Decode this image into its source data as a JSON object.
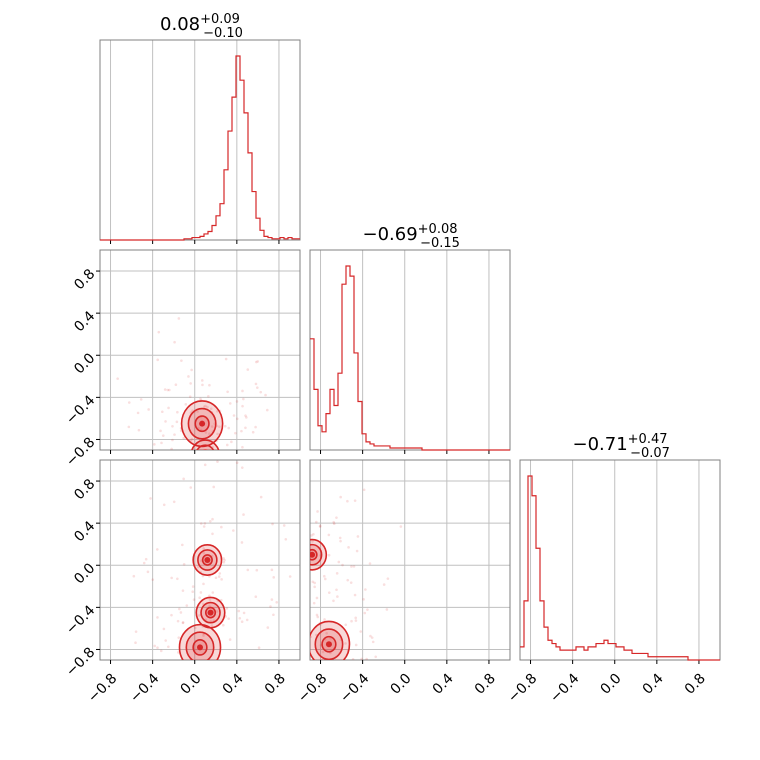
{
  "chart_data": {
    "type": "corner",
    "color": "#d62728",
    "grid": true,
    "axis_range": [
      -0.9,
      1.0
    ],
    "ticks": [
      -0.8,
      -0.4,
      0.0,
      0.4,
      0.8
    ],
    "titles": [
      {
        "value": "0.08",
        "plus": "+0.09",
        "minus": "−0.10"
      },
      {
        "value": "−0.69",
        "plus": "+0.08",
        "minus": "−0.15"
      },
      {
        "value": "−0.71",
        "plus": "+0.47",
        "minus": "−0.07"
      }
    ],
    "x_tick_labels": [
      "−0.8",
      "−0.4",
      "0.0",
      "0.4",
      "0.8"
    ],
    "y_tick_labels": [
      "−0.8",
      "−0.4",
      "0.0",
      "0.4",
      "0.8"
    ],
    "hist_bin_width": 0.038,
    "histograms": [
      {
        "param": 1,
        "bin_start": -0.9,
        "counts": [
          0,
          0,
          0,
          0,
          0,
          0,
          0,
          0,
          0,
          0,
          0,
          0,
          0,
          0,
          0,
          0,
          0,
          0,
          0,
          0,
          0,
          1,
          1,
          2,
          2,
          3,
          5,
          7,
          12,
          20,
          30,
          58,
          90,
          118,
          152,
          132,
          105,
          72,
          40,
          18,
          8,
          3,
          2,
          1,
          1,
          2,
          1,
          2,
          1,
          1,
          2,
          1,
          0
        ]
      },
      {
        "param": 2,
        "bin_start": -0.9,
        "counts": [
          55,
          30,
          12,
          9,
          18,
          30,
          22,
          38,
          82,
          91,
          86,
          48,
          24,
          8,
          4,
          3,
          2,
          2,
          2,
          2,
          1,
          1,
          1,
          1,
          1,
          1,
          1,
          1,
          0,
          0,
          0,
          0,
          0,
          0,
          0,
          0,
          0,
          0,
          0,
          0,
          0,
          0,
          0,
          0,
          0,
          0,
          0,
          0,
          0,
          0,
          0,
          0
        ]
      },
      {
        "param": 3,
        "bin_start": -0.9,
        "counts": [
          4,
          18,
          56,
          50,
          34,
          18,
          10,
          6,
          5,
          4,
          3,
          3,
          3,
          3,
          4,
          4,
          3,
          4,
          4,
          5,
          5,
          6,
          5,
          5,
          4,
          4,
          3,
          3,
          2,
          2,
          2,
          2,
          1,
          1,
          1,
          1,
          1,
          1,
          1,
          1,
          1,
          1,
          0,
          0,
          0,
          0,
          0,
          0,
          0,
          0,
          0,
          0
        ]
      }
    ],
    "scatter_panels": [
      {
        "x_param": 1,
        "y_param": 2,
        "density_centers": [
          [
            0.07,
            -0.65
          ],
          [
            0.1,
            -0.95
          ]
        ],
        "contour_levels": 3
      },
      {
        "x_param": 1,
        "y_param": 3,
        "density_centers": [
          [
            0.05,
            -0.78
          ],
          [
            0.12,
            0.05
          ],
          [
            0.15,
            -0.45
          ]
        ],
        "contour_levels": 3
      },
      {
        "x_param": 2,
        "y_param": 3,
        "density_centers": [
          [
            -0.72,
            -0.75
          ],
          [
            -0.88,
            0.1
          ]
        ],
        "contour_levels": 3
      }
    ]
  }
}
